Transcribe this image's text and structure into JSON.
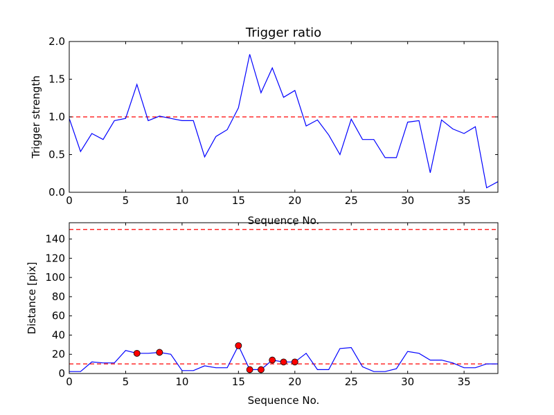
{
  "chart_data": [
    {
      "type": "line",
      "title": "Trigger ratio",
      "xlabel": "Sequence No.",
      "ylabel": "Trigger strength",
      "xlim": [
        0,
        38
      ],
      "ylim": [
        0,
        2.0
      ],
      "xticks": [
        0,
        5,
        10,
        15,
        20,
        25,
        30,
        35
      ],
      "xtick_labels": [
        "0",
        "5",
        "10",
        "15",
        "20",
        "25",
        "30",
        "35"
      ],
      "yticks": [
        0,
        0.5,
        1.0,
        1.5,
        2.0
      ],
      "ytick_labels": [
        "0.0",
        "0.5",
        "1.0",
        "1.5",
        "2.0"
      ],
      "grid": false,
      "line_color": "#0000ff",
      "threshold": 1.0,
      "threshold_color": "#ff0000",
      "x": [
        0,
        1,
        2,
        3,
        4,
        5,
        6,
        7,
        8,
        9,
        10,
        11,
        12,
        13,
        14,
        15,
        16,
        17,
        18,
        19,
        20,
        21,
        22,
        23,
        24,
        25,
        26,
        27,
        28,
        29,
        30,
        31,
        32,
        33,
        34,
        35,
        36,
        37,
        38
      ],
      "values": [
        0.98,
        0.54,
        0.78,
        0.7,
        0.95,
        0.98,
        1.43,
        0.95,
        1.01,
        0.98,
        0.95,
        0.95,
        0.47,
        0.74,
        0.83,
        1.12,
        1.83,
        1.32,
        1.65,
        1.26,
        1.35,
        0.88,
        0.96,
        0.76,
        0.5,
        0.97,
        0.7,
        0.7,
        0.46,
        0.46,
        0.93,
        0.95,
        0.26,
        0.96,
        0.84,
        0.78,
        0.87,
        0.06,
        0.14
      ]
    },
    {
      "type": "line",
      "title": "",
      "xlabel": "Sequence No.",
      "ylabel": "Distance [pix]",
      "xlim": [
        0,
        38
      ],
      "ylim": [
        0,
        157
      ],
      "xticks": [
        0,
        5,
        10,
        15,
        20,
        25,
        30,
        35
      ],
      "xtick_labels": [
        "0",
        "5",
        "10",
        "15",
        "20",
        "25",
        "30",
        "35"
      ],
      "yticks": [
        0,
        20,
        40,
        60,
        80,
        100,
        120,
        140
      ],
      "ytick_labels": [
        "0",
        "20",
        "40",
        "60",
        "80",
        "100",
        "120",
        "140"
      ],
      "grid": false,
      "line_color": "#0000ff",
      "marker_color": "#ff0000",
      "thresholds": [
        10,
        150
      ],
      "threshold_color": "#ff0000",
      "x": [
        0,
        1,
        2,
        3,
        4,
        5,
        6,
        7,
        8,
        9,
        10,
        11,
        12,
        13,
        14,
        15,
        16,
        17,
        18,
        19,
        20,
        21,
        22,
        23,
        24,
        25,
        26,
        27,
        28,
        29,
        30,
        31,
        32,
        33,
        34,
        35,
        36,
        37,
        38
      ],
      "values": [
        2,
        2,
        12,
        11,
        11,
        24,
        21,
        21,
        22,
        20,
        3,
        3,
        8,
        6,
        6,
        29,
        4,
        4,
        14,
        12,
        12,
        21,
        4,
        4,
        26,
        27,
        7,
        2,
        2,
        5,
        23,
        21,
        14,
        14,
        11,
        6,
        6,
        10,
        10
      ],
      "highlight_x": [
        6,
        8,
        15,
        16,
        17,
        18,
        19,
        20
      ],
      "highlight_values": [
        21,
        22,
        29,
        4,
        4,
        14,
        12,
        12
      ]
    }
  ]
}
